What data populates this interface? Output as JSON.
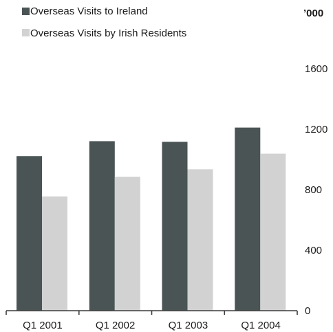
{
  "colors": {
    "series1": "#4a5454",
    "series2": "#d2d2d2",
    "axis": "#3c3c3c"
  },
  "chart_data": {
    "type": "bar",
    "unit_label": "’000",
    "categories": [
      "Q1 2001",
      "Q1 2002",
      "Q1 2003",
      "Q1 2004"
    ],
    "series": [
      {
        "name": "Overseas Visits to Ireland",
        "values": [
          1022,
          1121,
          1117,
          1211
        ]
      },
      {
        "name": "Overseas Visits by Irish Residents",
        "values": [
          756,
          886,
          935,
          1038
        ]
      }
    ],
    "y_ticks": [
      "0",
      "400",
      "800",
      "1200",
      "1600"
    ],
    "y_tick_values": [
      0,
      400,
      800,
      1200,
      1600
    ],
    "ylim": [
      0,
      1600
    ],
    "grid": false,
    "legend_position": "top-left",
    "y_axis_position": "right"
  }
}
